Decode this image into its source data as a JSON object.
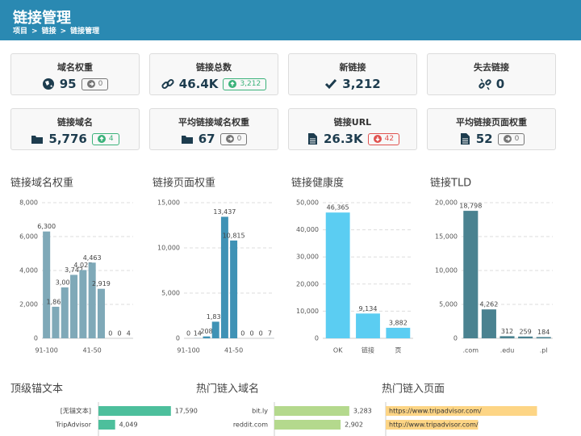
{
  "header": {
    "title": "链接管理",
    "breadcrumb": [
      "项目",
      "链接",
      "链接管理"
    ],
    "separator": ">"
  },
  "stats": [
    {
      "label": "域名权重",
      "value": "95",
      "badge": {
        "text": "0",
        "trend": "flat"
      }
    },
    {
      "label": "链接总数",
      "value": "46.4K",
      "badge": {
        "text": "3,212",
        "trend": "up"
      }
    },
    {
      "label": "新链接",
      "value": "3,212"
    },
    {
      "label": "失去链接",
      "value": "0"
    },
    {
      "label": "链接域名",
      "value": "5,776",
      "badge": {
        "text": "4",
        "trend": "up"
      }
    },
    {
      "label": "平均链接域名权重",
      "value": "67",
      "badge": {
        "text": "0",
        "trend": "flat"
      }
    },
    {
      "label": "链接URL",
      "value": "26.3K",
      "badge": {
        "text": "42",
        "trend": "down"
      }
    },
    {
      "label": "平均链接页面权重",
      "value": "52",
      "badge": {
        "text": "0",
        "trend": "flat"
      }
    }
  ],
  "chart_data": [
    {
      "type": "bar",
      "title": "链接域名权重",
      "color": "#7fa9b8",
      "categories": [
        "91-100",
        null,
        null,
        null,
        null,
        "41-50",
        null,
        null,
        null,
        null
      ],
      "values": [
        6300,
        1861,
        3002,
        3742,
        4027,
        4463,
        2919,
        0,
        0,
        4
      ],
      "value_labels": [
        "6,300",
        "1,861",
        "3,002",
        "3,742",
        "4,027",
        "4,463",
        "2,919",
        "0",
        "0",
        "4"
      ],
      "ylim": [
        0,
        8000
      ],
      "yticks": [
        0,
        {
          "value": 2000,
          "label": "2,000"
        },
        {
          "value": 4000,
          "label": "4,000"
        },
        {
          "value": 6000,
          "label": "6,000"
        },
        {
          "value": 8000,
          "label": "8,000"
        }
      ]
    },
    {
      "type": "bar",
      "title": "链接页面权重",
      "color": "#3f92b5",
      "categories": [
        "91-100",
        null,
        null,
        null,
        null,
        "41-50",
        null,
        null,
        null,
        null
      ],
      "values": [
        0,
        14,
        208,
        1837,
        13437,
        10815,
        0,
        0,
        0,
        7
      ],
      "value_labels": [
        "0",
        "14",
        "208",
        "1,837",
        "13,437",
        "10,815",
        "0",
        "0",
        "0",
        "7"
      ],
      "ylim": [
        0,
        15000
      ],
      "yticks": [
        0,
        {
          "value": 5000,
          "label": "5,000"
        },
        {
          "value": 10000,
          "label": "10,000"
        },
        {
          "value": 15000,
          "label": "15,000"
        }
      ]
    },
    {
      "type": "bar",
      "title": "链接健康度",
      "color": "#5bcdf2",
      "categories": [
        "OK",
        "链接",
        "页"
      ],
      "values": [
        46365,
        9134,
        3882
      ],
      "value_labels": [
        "46,365",
        "9,134",
        "3,882"
      ],
      "ylim": [
        0,
        50000
      ],
      "yticks": [
        0,
        {
          "value": 10000,
          "label": "10,000"
        },
        {
          "value": 20000,
          "label": "20,000"
        },
        {
          "value": 30000,
          "label": "30,000"
        },
        {
          "value": 40000,
          "label": "40,000"
        },
        {
          "value": 50000,
          "label": "50,000"
        }
      ]
    },
    {
      "type": "bar",
      "title": "链接TLD",
      "color": "#4a8290",
      "categories": [
        ".com",
        null,
        ".edu",
        null,
        ".pl"
      ],
      "values": [
        18798,
        4262,
        312,
        259,
        184
      ],
      "value_labels": [
        "18,798",
        "4,262",
        "312",
        "259",
        "184"
      ],
      "ylim": [
        0,
        20000
      ],
      "yticks": [
        0,
        {
          "value": 5000,
          "label": "5,000"
        },
        {
          "value": 10000,
          "label": "10,000"
        },
        {
          "value": 15000,
          "label": "15,000"
        },
        {
          "value": 20000,
          "label": "20,000"
        }
      ]
    },
    {
      "type": "hbar",
      "title": "顶级锚文本",
      "color": "#4dbf9c",
      "categories": [
        "[无锚文本]",
        "TripAdvisor"
      ],
      "values": [
        17590,
        4049
      ],
      "value_labels": [
        "17,590",
        "4,049"
      ],
      "xlim": [
        0,
        19000
      ]
    },
    {
      "type": "hbar",
      "title": "热门链入域名",
      "color": "#b4d98d",
      "categories": [
        "bit.ly",
        "reddit.com"
      ],
      "values": [
        3283,
        2902
      ],
      "value_labels": [
        "3,283",
        "2,902"
      ],
      "xlim": [
        0,
        3500
      ]
    },
    {
      "type": "hbar",
      "title": "热门链入页面",
      "color": "#fdd585",
      "label_position": "inside",
      "categories": [
        "https://www.tripadvisor.com/",
        "http://www.tripadvisor.com/"
      ],
      "values": [
        3000,
        1830
      ],
      "xlim": [
        0,
        3200
      ]
    }
  ]
}
